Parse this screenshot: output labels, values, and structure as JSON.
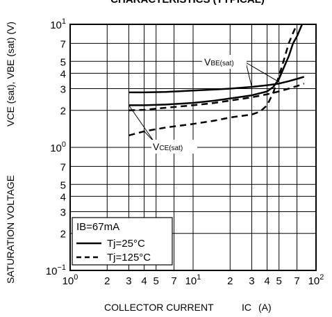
{
  "chart_data": {
    "type": "line",
    "title": "CHARACTERISTICS (TYPICAL)",
    "xlabel": "COLLECTOR CURRENT",
    "xlabel_symbol": "IC",
    "xlabel_unit": "(A)",
    "ylabel": "SATURATION VOLTAGE",
    "ylabel_symbols": "VCE (sat), VBE (sat) (V)",
    "xscale": "log",
    "yscale": "log",
    "xlim": [
      1,
      100
    ],
    "ylim": [
      0.1,
      10
    ],
    "grid": true,
    "x_ticks": [
      {
        "mant": "10",
        "exp": "0"
      },
      {
        "mant": "2"
      },
      {
        "mant": "3"
      },
      {
        "mant": "4"
      },
      {
        "mant": "5"
      },
      {
        "mant": "7"
      },
      {
        "mant": "10",
        "exp": "1"
      },
      {
        "mant": "2"
      },
      {
        "mant": "3"
      },
      {
        "mant": "4"
      },
      {
        "mant": "5"
      },
      {
        "mant": "7"
      },
      {
        "mant": "10",
        "exp": "2"
      }
    ],
    "y_ticks": [
      {
        "mant": "10",
        "exp": "−1"
      },
      {
        "mant": "2"
      },
      {
        "mant": "3"
      },
      {
        "mant": "4"
      },
      {
        "mant": "5"
      },
      {
        "mant": "7"
      },
      {
        "mant": "10",
        "exp": "0"
      },
      {
        "mant": "2"
      },
      {
        "mant": "3"
      },
      {
        "mant": "4"
      },
      {
        "mant": "5"
      },
      {
        "mant": "7"
      },
      {
        "mant": "10",
        "exp": "1"
      }
    ],
    "legend": {
      "header": "IB=67mA",
      "entries": [
        {
          "label": "Tj=25°C",
          "style": "solid"
        },
        {
          "label": "Tj=125°C",
          "style": "dashed"
        }
      ],
      "placement": "bottom-left"
    },
    "annotations": [
      {
        "text_main": "V",
        "text_sub": "BE(sat)"
      },
      {
        "text_main": "V",
        "text_sub": "CE(sat)"
      }
    ],
    "series": [
      {
        "curve": "VBE(sat)",
        "condition": "Tj=25°C",
        "style": "solid",
        "x": [
          3,
          4,
          6,
          10,
          15,
          20,
          30,
          40,
          50,
          60,
          70,
          80
        ],
        "y": [
          2.8,
          2.8,
          2.82,
          2.9,
          2.95,
          3.0,
          3.1,
          3.2,
          3.3,
          3.45,
          3.6,
          3.75
        ]
      },
      {
        "curve": "VCE(sat)",
        "condition": "Tj=25°C",
        "style": "solid",
        "x": [
          3,
          4,
          6,
          10,
          15,
          20,
          30,
          40,
          45,
          50,
          55,
          60,
          65,
          70,
          77
        ],
        "y": [
          2.2,
          2.2,
          2.23,
          2.3,
          2.4,
          2.5,
          2.65,
          2.85,
          3.1,
          3.6,
          4.5,
          5.5,
          7.0,
          8.0,
          10.0
        ]
      },
      {
        "curve": "VBE(sat)",
        "condition": "Tj=125°C",
        "style": "dashed",
        "x": [
          3,
          4,
          6,
          10,
          15,
          20,
          30,
          40,
          50,
          60,
          70,
          80
        ],
        "y": [
          2.0,
          2.02,
          2.1,
          2.2,
          2.3,
          2.4,
          2.55,
          2.7,
          2.85,
          3.0,
          3.15,
          3.3
        ]
      },
      {
        "curve": "VCE(sat)",
        "condition": "Tj=125°C",
        "style": "dashed",
        "x": [
          3,
          4,
          6,
          10,
          15,
          20,
          30,
          35,
          40,
          45,
          50,
          55,
          60,
          65,
          70
        ],
        "y": [
          1.25,
          1.35,
          1.45,
          1.55,
          1.65,
          1.75,
          1.85,
          1.95,
          2.2,
          2.8,
          3.8,
          5.2,
          7.0,
          8.5,
          10.0
        ]
      }
    ]
  }
}
